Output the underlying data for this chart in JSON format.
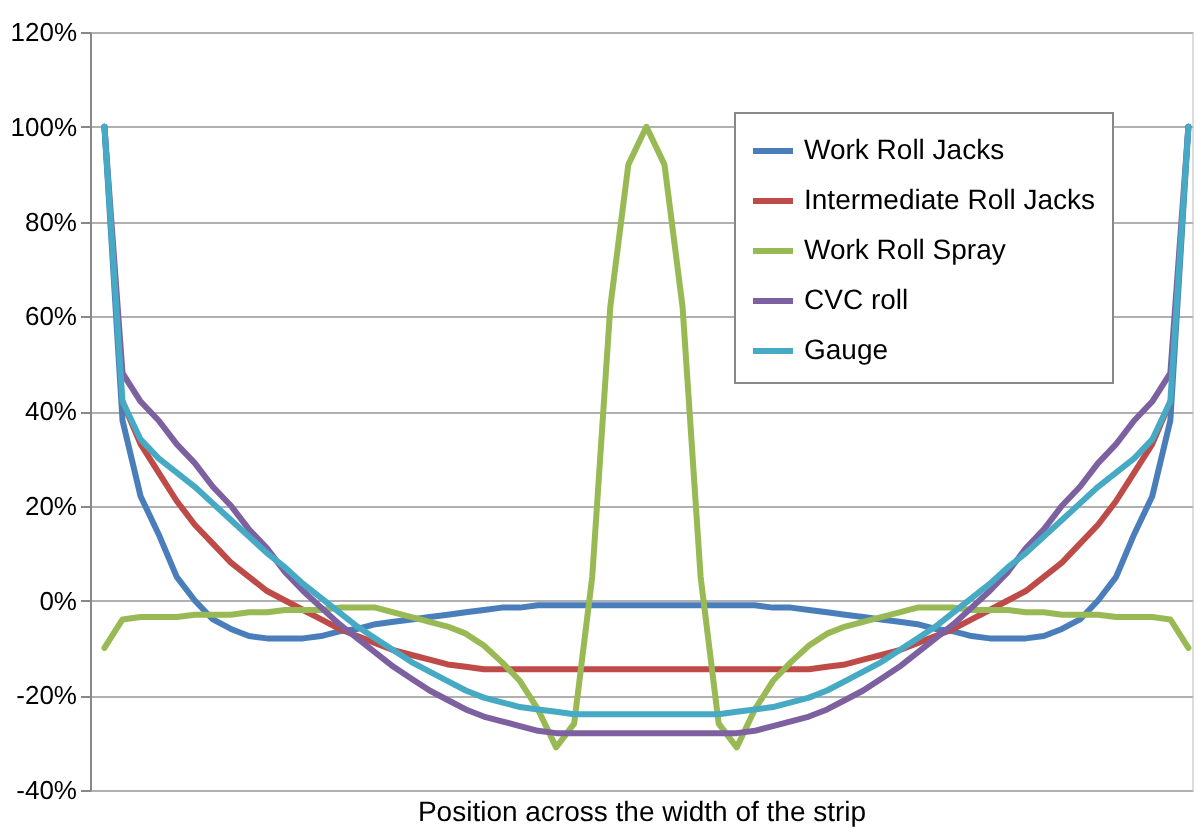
{
  "chart_data": {
    "type": "line",
    "xlabel": "Position across the width of the strip",
    "categories": [
      null,
      null,
      null,
      null,
      null,
      null,
      null,
      null,
      null,
      null,
      null,
      null,
      null,
      null,
      null,
      null,
      null,
      null,
      null,
      null,
      null,
      null,
      null,
      null,
      null,
      null,
      null,
      null,
      null,
      null,
      null,
      null,
      null,
      null,
      null,
      null,
      null,
      null,
      null,
      null,
      null,
      null,
      null,
      null,
      null,
      null,
      null,
      null,
      null,
      null,
      null,
      null,
      null,
      null,
      null,
      null,
      null,
      null,
      null,
      null,
      null
    ],
    "series": [
      {
        "name": "Work Roll Jacks",
        "color": "#4a7ebb",
        "values": [
          100,
          38,
          22,
          14,
          5,
          0,
          -4,
          -6,
          -7.5,
          -8,
          -8,
          -8,
          -7.5,
          -6.5,
          -6,
          -5,
          -4.5,
          -4,
          -3.5,
          -3,
          -2.5,
          -2,
          -1.5,
          -1.5,
          -1,
          -1,
          -1,
          -1,
          -1,
          -1,
          -1,
          -1,
          -1,
          -1,
          -1,
          -1,
          -1,
          -1.5,
          -1.5,
          -2,
          -2.5,
          -3,
          -3.5,
          -4,
          -4.5,
          -5,
          -6,
          -6.5,
          -7.5,
          -8,
          -8,
          -8,
          -7.5,
          -6,
          -4,
          0,
          5,
          14,
          22,
          38,
          100
        ]
      },
      {
        "name": "Intermediate Roll Jacks",
        "color": "#be4b48",
        "values": [
          null,
          42,
          33,
          27,
          21,
          16,
          12,
          8,
          5,
          2,
          0,
          -2,
          -4,
          -6,
          -7.5,
          -9,
          -10.5,
          -11.5,
          -12.5,
          -13.5,
          -14,
          -14.5,
          -14.5,
          -14.5,
          -14.5,
          -14.5,
          -14.5,
          -14.5,
          -14.5,
          -14.5,
          -14.5,
          -14.5,
          -14.5,
          -14.5,
          -14.5,
          -14.5,
          -14.5,
          -14.5,
          -14.5,
          -14.5,
          -14,
          -13.5,
          -12.5,
          -11.5,
          -10.5,
          -9,
          -7.5,
          -6,
          -4,
          -2,
          0,
          2,
          5,
          8,
          12,
          16,
          21,
          27,
          33,
          42,
          null
        ]
      },
      {
        "name": "Work Roll Spray",
        "color": "#98b954",
        "values": [
          -10,
          -4,
          -3.5,
          -3.5,
          -3.5,
          -3,
          -3,
          -3,
          -2.5,
          -2.5,
          -2,
          -2,
          -2,
          -1.5,
          -1.5,
          -1.5,
          -2.5,
          -3.5,
          -4.5,
          -5.5,
          -7,
          -9.5,
          -13,
          -17,
          -23,
          -31,
          -26,
          5,
          62,
          92,
          100,
          92,
          62,
          5,
          -26,
          -31,
          -23,
          -17,
          -13,
          -9.5,
          -7,
          -5.5,
          -4.5,
          -3.5,
          -2.5,
          -1.5,
          -1.5,
          -1.5,
          -2,
          -2,
          -2,
          -2.5,
          -2.5,
          -3,
          -3,
          -3,
          -3.5,
          -3.5,
          -3.5,
          -4,
          -10
        ]
      },
      {
        "name": "CVC roll",
        "color": "#7d60a0",
        "values": [
          100,
          48,
          42,
          38,
          33,
          29,
          24,
          20,
          15,
          11,
          6,
          2,
          -1.5,
          -5,
          -8,
          -11,
          -14,
          -16.5,
          -19,
          -21,
          -23,
          -24.5,
          -25.5,
          -26.5,
          -27.5,
          -28,
          -28,
          -28,
          -28,
          -28,
          -28,
          -28,
          -28,
          -28,
          -28,
          -28,
          -27.5,
          -26.5,
          -25.5,
          -24.5,
          -23,
          -21,
          -19,
          -16.5,
          -14,
          -11,
          -8,
          -5,
          -1.5,
          2,
          6,
          11,
          15,
          20,
          24,
          29,
          33,
          38,
          42,
          48,
          100
        ]
      },
      {
        "name": "Gauge",
        "color": "#46aac5",
        "values": [
          100,
          42,
          34,
          30,
          27,
          24,
          20.5,
          17,
          13.5,
          10,
          7,
          3.5,
          0.5,
          -2.5,
          -5.5,
          -8,
          -10.5,
          -13,
          -15,
          -17,
          -19,
          -20.5,
          -21.5,
          -22.5,
          -23,
          -23.5,
          -24,
          -24,
          -24,
          -24,
          -24,
          -24,
          -24,
          -24,
          -24,
          -23.5,
          -23,
          -22.5,
          -21.5,
          -20.5,
          -19,
          -17,
          -15,
          -13,
          -10.5,
          -8,
          -5.5,
          -2.5,
          0.5,
          3.5,
          7,
          10,
          13.5,
          17,
          20.5,
          24,
          27,
          30,
          34,
          42,
          100
        ]
      }
    ],
    "ylim": [
      -40,
      120
    ],
    "yticks": [
      {
        "value": -40,
        "label": "-40%"
      },
      {
        "value": -20,
        "label": "-20%"
      },
      {
        "value": 0,
        "label": "0%"
      },
      {
        "value": 20,
        "label": "20%"
      },
      {
        "value": 40,
        "label": "40%"
      },
      {
        "value": 60,
        "label": "60%"
      },
      {
        "value": 80,
        "label": "80%"
      },
      {
        "value": 100,
        "label": "100%"
      },
      {
        "value": 120,
        "label": "120%"
      }
    ],
    "grid": "y",
    "legend": "top right",
    "line_style": "solid",
    "marker": "none"
  }
}
